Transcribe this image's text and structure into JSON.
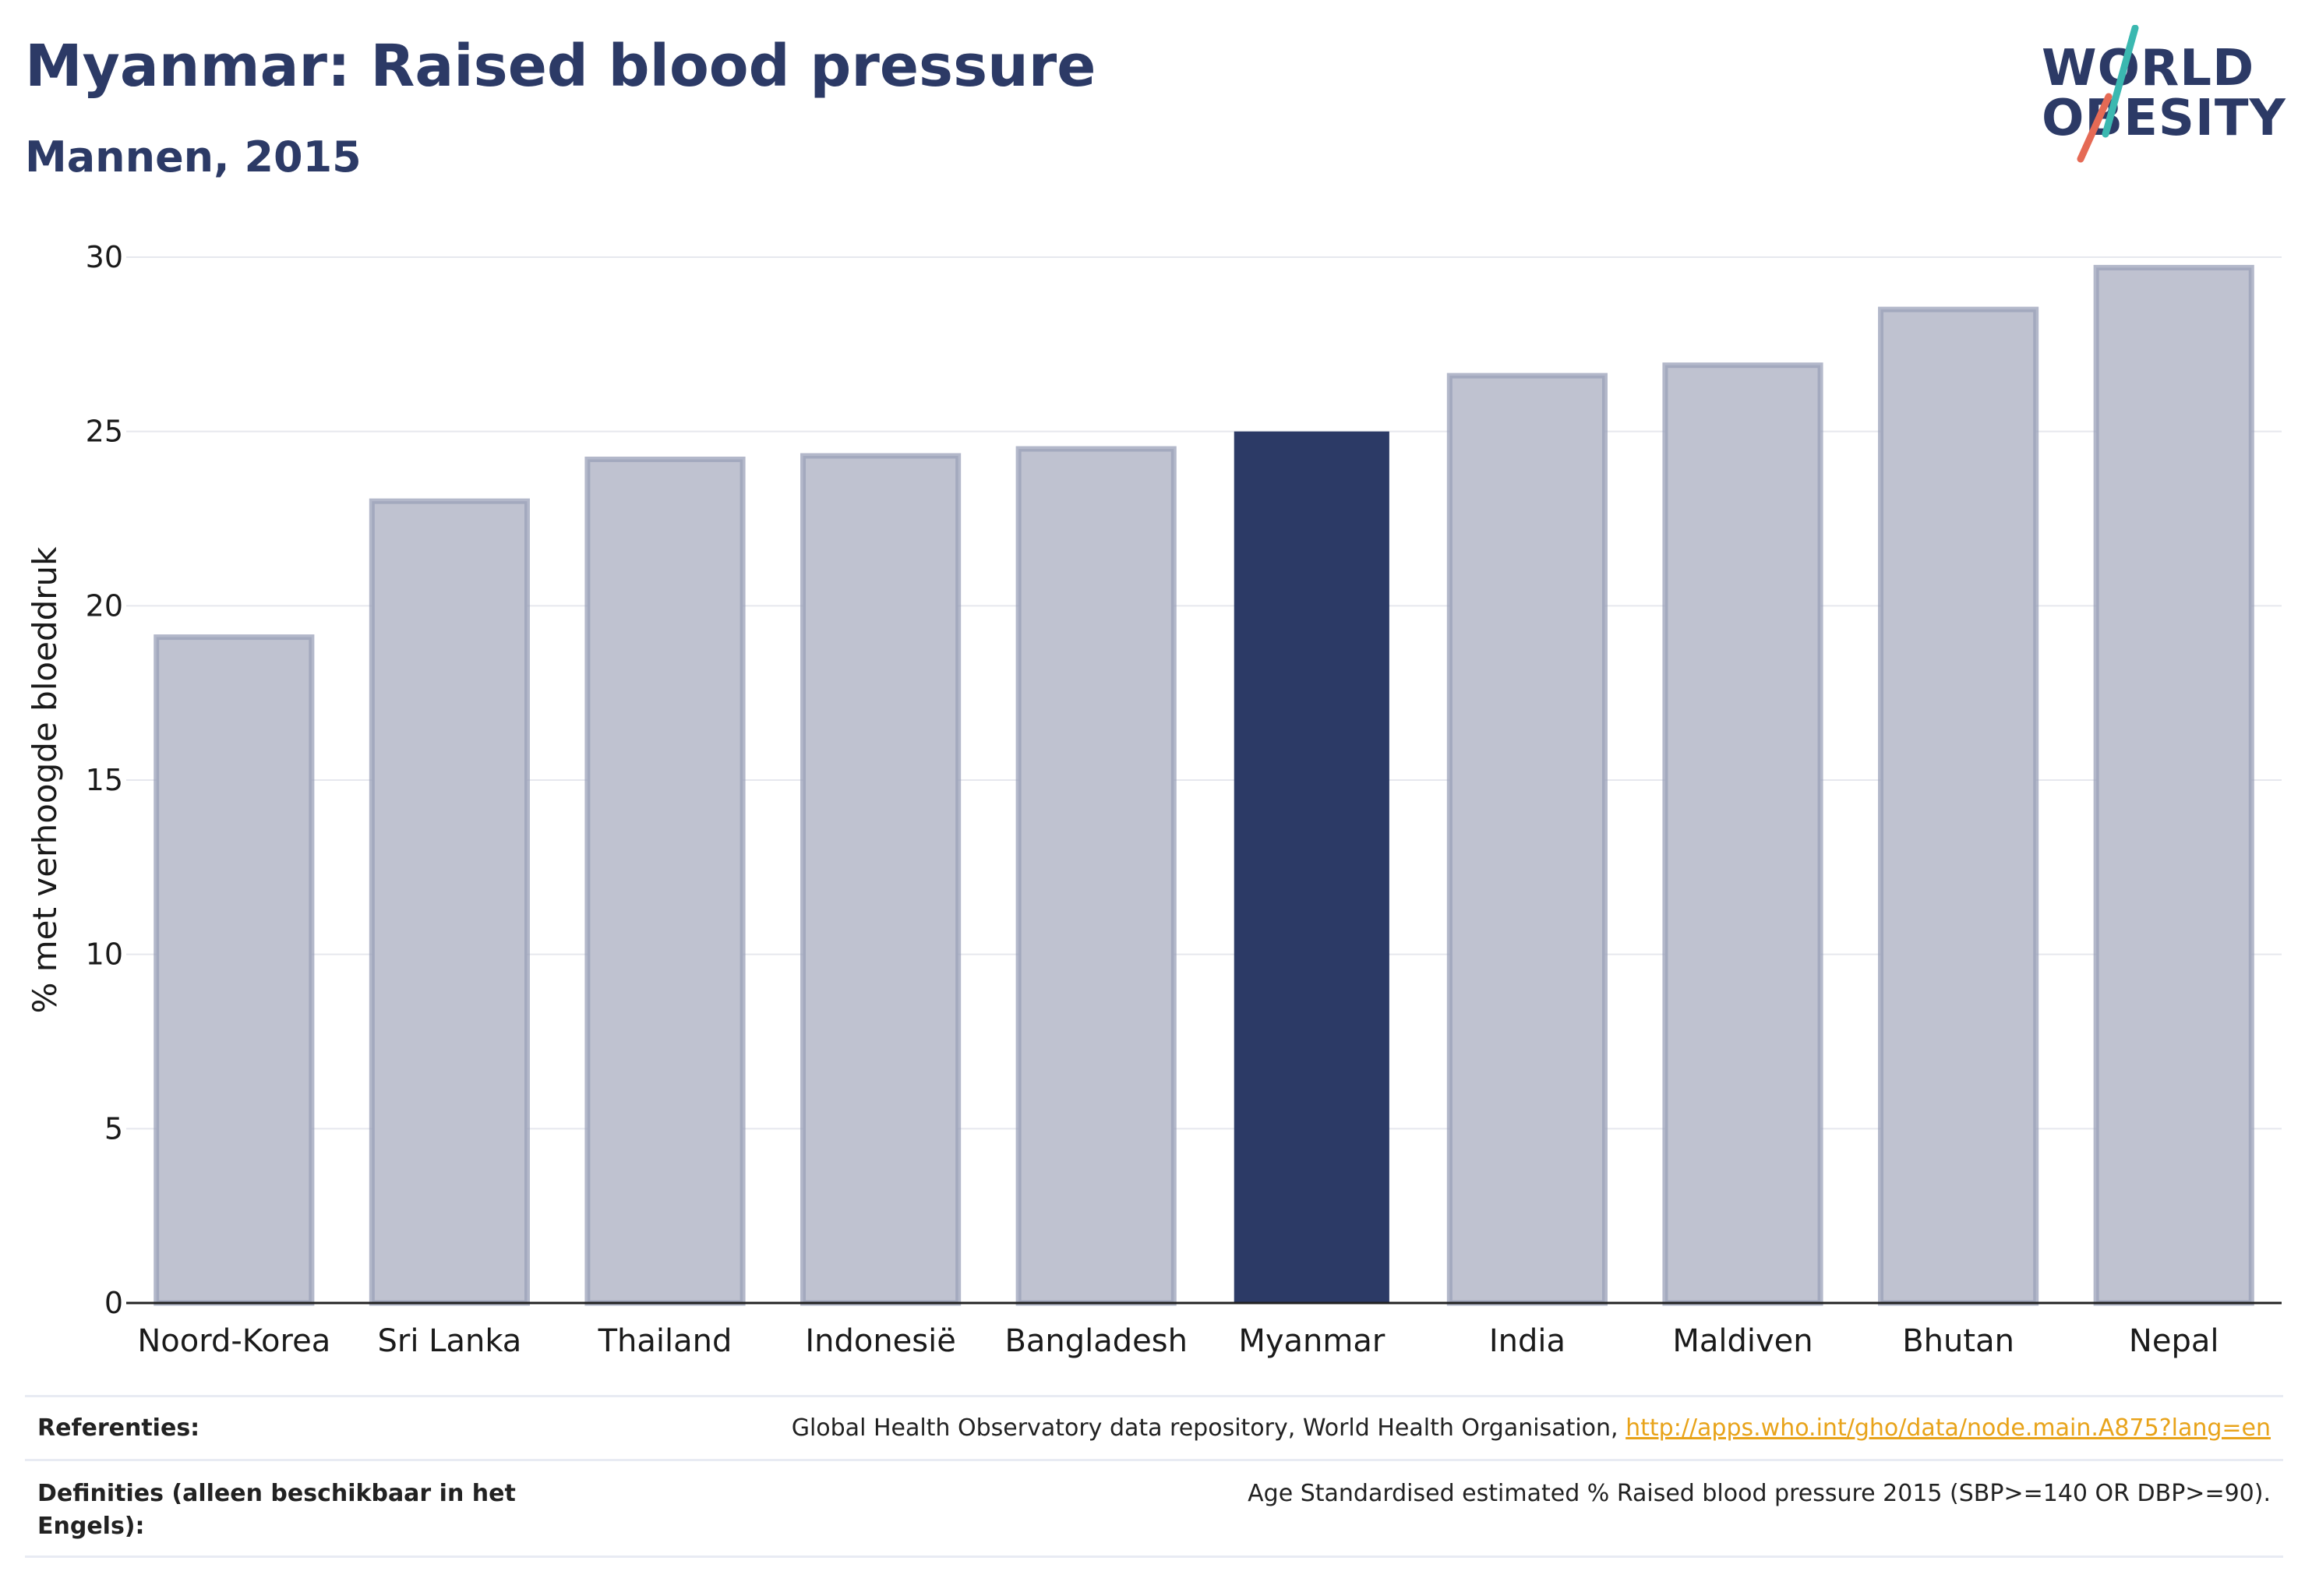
{
  "header": {
    "title": "Myanmar: Raised blood pressure",
    "subtitle": "Mannen, 2015"
  },
  "logo": {
    "line1": "WORLD",
    "line2": "OBESITY",
    "colors": {
      "text": "#2c3a66",
      "slash_top": "#3bb8b0",
      "slash_bottom": "#e56a55"
    }
  },
  "colors": {
    "bar_default": "#bfc2d0",
    "bar_default_border": "#9aa0b8",
    "bar_highlight": "#2c3a66",
    "axis_text": "#1a1a1a",
    "grid": "#e6e8ee"
  },
  "chart_data": {
    "type": "bar",
    "categories": [
      "Noord-Korea",
      "Sri Lanka",
      "Thailand",
      "Indonesië",
      "Bangladesh",
      "Myanmar",
      "India",
      "Maldiven",
      "Bhutan",
      "Nepal"
    ],
    "values": [
      19.1,
      23.0,
      24.2,
      24.3,
      24.5,
      25.0,
      26.6,
      26.9,
      28.5,
      29.7
    ],
    "highlight": "Myanmar",
    "ylabel": "% met verhoogde bloeddruk",
    "xlabel": "",
    "ylim": [
      0,
      30
    ],
    "yticks": [
      0,
      5,
      10,
      15,
      20,
      25,
      30
    ],
    "grid": true,
    "legend": "none"
  },
  "references": {
    "ref_label": "Referenties:",
    "ref_text": "Global Health Observatory data repository, World Health Organisation,",
    "ref_link": "http://apps.who.int/gho/data/node.main.A875?lang=en",
    "def_label_line1": "Definities (alleen beschikbaar in het",
    "def_label_line2": "Engels):",
    "def_text": "Age Standardised estimated % Raised blood pressure 2015 (SBP>=140 OR DBP>=90)."
  }
}
